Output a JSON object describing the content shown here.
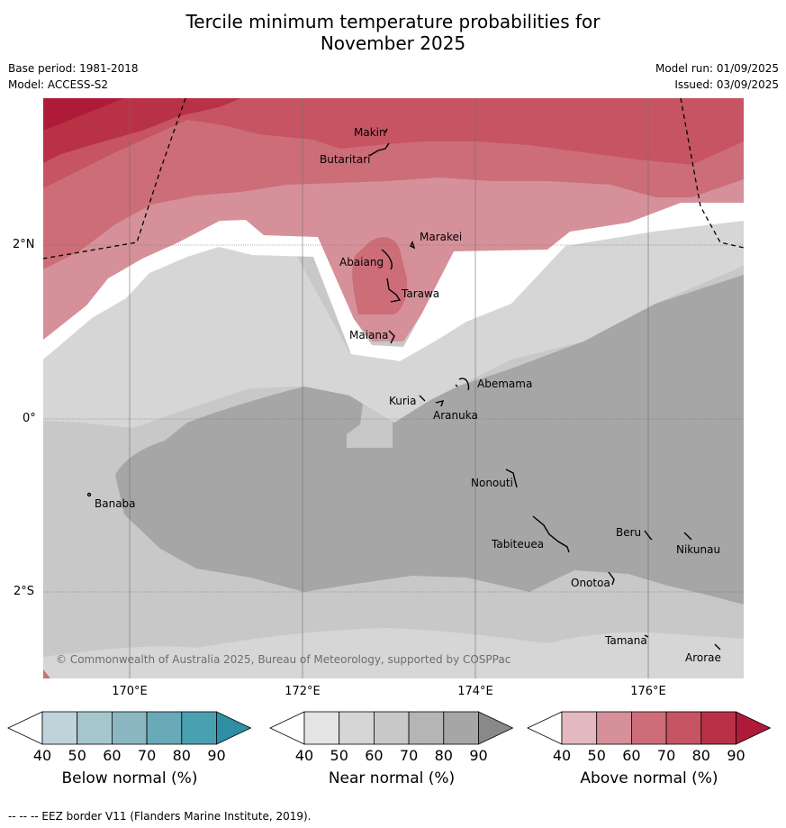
{
  "title_line1": "Tercile minimum temperature probabilities for",
  "title_line2": "November 2025",
  "base_period": "Base period: 1981-2018",
  "model": "Model: ACCESS-S2",
  "model_run": "Model run: 01/09/2025",
  "issued": "Issued: 03/09/2025",
  "lat_labels": [
    "2°N",
    "0°",
    "2°S"
  ],
  "lon_labels": [
    "170°E",
    "172°E",
    "174°E",
    "176°E"
  ],
  "islands": [
    "Makin",
    "Butaritari",
    "Marakei",
    "Abaiang",
    "Tarawa",
    "Maiana",
    "Abemama",
    "Kuria",
    "Aranuka",
    "Banaba",
    "Nonouti",
    "Tabiteuea",
    "Beru",
    "Nikunau",
    "Onotoa",
    "Tamana",
    "Arorae"
  ],
  "copyright": "© Commonwealth of Australia 2025, Bureau of Meteorology, supported by COSPPac",
  "colorbars": [
    {
      "title": "Below normal (%)",
      "ticks": [
        "40",
        "50",
        "60",
        "70",
        "80",
        "90"
      ],
      "colors": [
        "#bfd3da",
        "#a6c6cd",
        "#8bb7c2",
        "#6aaab8",
        "#49a0b0",
        "#2d8ea4"
      ]
    },
    {
      "title": "Near normal (%)",
      "ticks": [
        "40",
        "50",
        "60",
        "70",
        "80",
        "90"
      ],
      "colors": [
        "#e4e4e4",
        "#d6d6d6",
        "#c8c8c8",
        "#b5b5b5",
        "#a6a6a6",
        "#898989"
      ]
    },
    {
      "title": "Above normal (%)",
      "ticks": [
        "40",
        "50",
        "60",
        "70",
        "80",
        "90"
      ],
      "colors": [
        "#e3b9bf",
        "#d69099",
        "#cc6d78",
        "#c65462",
        "#b93145",
        "#b01a39"
      ]
    }
  ],
  "footer": "--  --  -- EEZ border V11 (Flanders Marine Institute, 2019)."
}
